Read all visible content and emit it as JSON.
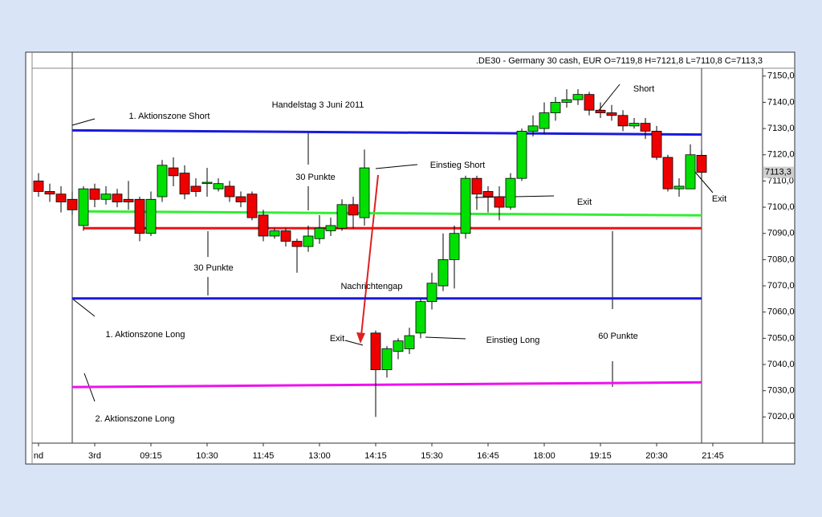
{
  "chart_data": {
    "type": "candlestick",
    "header": ".DE30 - Germany 30 cash, EUR O=7119,8 H=7121,8 L=7110,8 C=7113,3",
    "categories": [
      "nd",
      null,
      null,
      null,
      null,
      "3rd",
      null,
      null,
      null,
      null,
      "09:15",
      null,
      null,
      null,
      null,
      "10:30",
      null,
      null,
      null,
      null,
      "11:45",
      null,
      null,
      null,
      null,
      "13:00",
      null,
      null,
      null,
      null,
      "14:15",
      null,
      null,
      null,
      null,
      "15:30",
      null,
      null,
      null,
      null,
      "16:45",
      null,
      null,
      null,
      null,
      "18:00",
      null,
      null,
      null,
      null,
      "19:15",
      null,
      null,
      null,
      null,
      "20:30",
      null,
      null,
      null,
      null,
      "21:45"
    ],
    "open": [
      7110,
      7106,
      7105,
      7103,
      7093,
      7107,
      7103,
      7105,
      7103,
      7103,
      7090,
      7104,
      7115,
      7113,
      7108,
      7109,
      7107,
      7108,
      7104,
      7105,
      7097,
      7089,
      7091,
      7087,
      7085,
      7088,
      7091,
      7092,
      7101,
      7096,
      7052,
      7038,
      7045,
      7046,
      7052,
      7064,
      7070,
      7080,
      7090,
      7111,
      7106,
      7104,
      7100,
      7111,
      7129,
      7130,
      7136,
      7140,
      7141,
      7143,
      7137,
      7136,
      7135,
      7131,
      7132,
      7129,
      7119,
      7107,
      7107,
      7119.8,
      null
    ],
    "high": [
      7113,
      7109,
      7108,
      7106,
      7108,
      7109,
      7108,
      7107,
      7110,
      7104,
      7106,
      7118,
      7119,
      7116,
      7111,
      7115,
      7111,
      7110,
      7106,
      7106,
      7099,
      7092,
      7092,
      7088,
      7093,
      7097,
      7096,
      7103,
      7104,
      7122,
      7053,
      7047,
      7050,
      7054,
      7065,
      7075,
      7090,
      7093,
      7112,
      7112,
      7108,
      7108,
      7113,
      7130,
      7135,
      7140,
      7142,
      7145,
      7145,
      7144,
      7140,
      7139,
      7137,
      7134,
      7134,
      7131,
      7120,
      7111,
      7124,
      7121.8,
      null
    ],
    "low": [
      7104,
      7102,
      7098,
      7097,
      7091,
      7100,
      7101,
      7100,
      7099,
      7087,
      7089,
      7102,
      7108,
      7103,
      7104,
      7104,
      7106,
      7102,
      7100,
      7095,
      7087,
      7088,
      7085,
      7075,
      7083,
      7086,
      7089,
      7091,
      7092,
      7093,
      7020,
      7035,
      7042,
      7044,
      7050,
      7061,
      7068,
      7069,
      7088,
      7099,
      7098,
      7095,
      7099,
      7110,
      7127,
      7128,
      7133,
      7138,
      7139,
      7135,
      7134,
      7133,
      7129,
      7130,
      7126,
      7118,
      7106,
      7104,
      7107,
      7110.8,
      null
    ],
    "close": [
      7106,
      7105,
      7102,
      7099,
      7107,
      7103,
      7105,
      7102,
      7102,
      7090,
      7103,
      7116,
      7112,
      7105,
      7106,
      7109.5,
      7109,
      7104,
      7102,
      7096,
      7089,
      7091,
      7087,
      7085,
      7089,
      7092,
      7093,
      7101,
      7097,
      7115,
      7038,
      7046,
      7049,
      7051,
      7064,
      7071,
      7080,
      7090,
      7111,
      7105,
      7104,
      7100,
      7111,
      7129,
      7131,
      7136,
      7140,
      7141,
      7143,
      7137,
      7136,
      7135,
      7131,
      7132,
      7129,
      7119,
      7107,
      7108,
      7120,
      7113.3,
      null
    ],
    "up_color": "#00e000",
    "down_color": "#ee0000",
    "ylim": [
      7010,
      7153
    ],
    "yticks": [
      {
        "value": 7020,
        "label": "7020,0"
      },
      {
        "value": 7030,
        "label": "7030,0"
      },
      {
        "value": 7040,
        "label": "7040,0"
      },
      {
        "value": 7050,
        "label": "7050,0"
      },
      {
        "value": 7060,
        "label": "7060,0"
      },
      {
        "value": 7070,
        "label": "7070,0"
      },
      {
        "value": 7080,
        "label": "7080,0"
      },
      {
        "value": 7090,
        "label": "7090,0"
      },
      {
        "value": 7100,
        "label": "7100,0"
      },
      {
        "value": 7110,
        "label": "7110,0"
      },
      {
        "value": 7120,
        "label": "7120,0"
      },
      {
        "value": 7130,
        "label": "7130,0"
      },
      {
        "value": 7140,
        "label": "7140,0"
      },
      {
        "value": 7150,
        "label": "7150,0"
      }
    ],
    "last_price": {
      "value": 7113.3,
      "label": "7113,3"
    },
    "levels": [
      {
        "color": "#1a1adc",
        "x": [
          3,
          59
        ],
        "values": [
          7129.3,
          7127.7
        ]
      },
      {
        "color": "#33ee33",
        "x": [
          4,
          59
        ],
        "values": [
          7098.4,
          7096.9
        ]
      },
      {
        "color": "#ee1111",
        "x": [
          4,
          59
        ],
        "values": [
          7092,
          7092
        ]
      },
      {
        "color": "#1a1adc",
        "x": [
          3,
          59
        ],
        "values": [
          7065.2,
          7065.2
        ]
      },
      {
        "color": "#ee11ee",
        "x": [
          3,
          59
        ],
        "values": [
          7031.4,
          7033.2
        ]
      }
    ],
    "annotations": [
      "Handelstag 3 Juni 2011",
      "1. Aktionszone Short",
      "30 Punkte",
      "Einstieg Short",
      "30 Punkte",
      "Nachrichtengap",
      "Exit",
      "Short",
      "Exit",
      "1. Aktionszone Long",
      "Exit",
      "Einstieg Long",
      "60 Punkte",
      "2. Aktionszone Long"
    ]
  }
}
